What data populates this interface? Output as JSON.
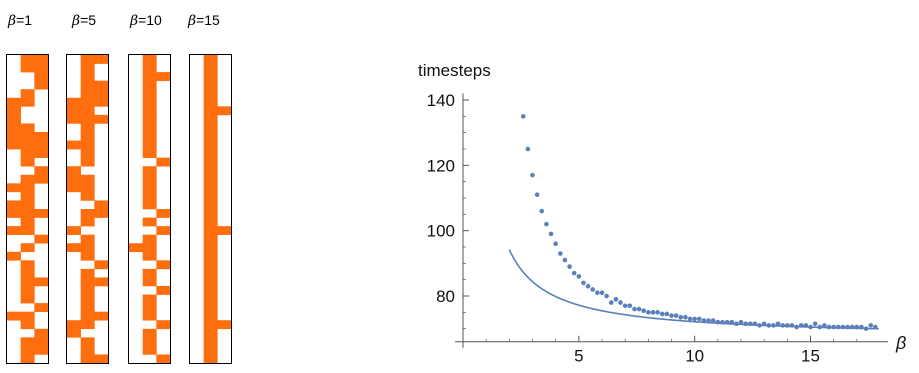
{
  "panels": [
    {
      "symbol": "β",
      "value_label": "=1",
      "cells": [
        [
          1,
          2
        ],
        [
          1,
          2
        ],
        [
          2
        ],
        [
          2
        ],
        [
          1
        ],
        [
          0,
          1
        ],
        [
          0
        ],
        [
          0
        ],
        [
          0,
          1
        ],
        [
          0,
          1,
          2
        ],
        [
          0,
          1,
          2
        ],
        [
          1,
          2
        ],
        [
          1
        ],
        [
          2
        ],
        [
          1,
          2
        ],
        [
          0,
          1
        ],
        [
          1
        ],
        [
          0,
          1
        ],
        [
          0,
          1,
          2
        ],
        [
          1
        ],
        [
          0,
          1
        ],
        [
          2
        ],
        [
          1
        ],
        [
          0
        ],
        [
          1
        ],
        [
          1
        ],
        [
          1,
          2
        ],
        [
          1
        ],
        [
          1
        ],
        [
          2
        ],
        [
          0,
          1
        ],
        [
          1
        ],
        [
          2
        ],
        [
          1,
          2
        ],
        [
          1,
          2
        ],
        [
          1
        ]
      ]
    },
    {
      "symbol": "β",
      "value_label": "=5",
      "cells": [
        [
          1,
          2
        ],
        [
          1
        ],
        [
          1
        ],
        [
          1,
          2
        ],
        [
          1,
          2
        ],
        [
          0,
          1,
          2
        ],
        [
          0,
          1
        ],
        [
          0,
          1,
          2
        ],
        [
          1
        ],
        [
          1
        ],
        [
          0,
          1
        ],
        [
          1
        ],
        [
          1
        ],
        [
          0
        ],
        [
          0,
          1
        ],
        [
          0,
          1
        ],
        [
          1
        ],
        [
          2
        ],
        [
          1,
          2
        ],
        [
          1
        ],
        [
          0
        ],
        [
          1
        ],
        [
          0,
          1
        ],
        [
          1
        ],
        [
          2
        ],
        [
          1
        ],
        [
          1,
          2
        ],
        [
          1
        ],
        [
          1
        ],
        [
          1
        ],
        [
          1,
          2
        ],
        [
          0,
          1
        ],
        [
          0
        ],
        [
          1
        ],
        [
          1
        ],
        [
          1,
          2
        ]
      ]
    },
    {
      "symbol": "β",
      "value_label": "=10",
      "cells": [
        [
          1
        ],
        [
          1
        ],
        [
          1,
          2
        ],
        [
          1
        ],
        [
          1
        ],
        [
          1
        ],
        [
          1
        ],
        [
          1
        ],
        [
          1
        ],
        [
          1
        ],
        [
          1
        ],
        [
          1
        ],
        [
          2
        ],
        [
          1
        ],
        [
          1
        ],
        [
          1
        ],
        [
          1
        ],
        [
          1
        ],
        [
          2
        ],
        [
          1
        ],
        [
          2
        ],
        [
          1
        ],
        [
          0,
          1
        ],
        [
          1
        ],
        [
          2
        ],
        [
          1
        ],
        [
          1
        ],
        [
          2
        ],
        [
          1
        ],
        [
          1
        ],
        [
          1
        ],
        [
          2
        ],
        [
          1
        ],
        [
          1
        ],
        [
          1
        ],
        [
          2
        ]
      ]
    },
    {
      "symbol": "β",
      "value_label": "=15",
      "cells": [
        [
          1
        ],
        [
          1
        ],
        [
          1
        ],
        [
          1
        ],
        [
          1
        ],
        [
          1
        ],
        [
          1,
          2
        ],
        [
          1
        ],
        [
          1
        ],
        [
          1
        ],
        [
          1
        ],
        [
          1
        ],
        [
          1
        ],
        [
          1
        ],
        [
          1
        ],
        [
          1
        ],
        [
          1
        ],
        [
          1
        ],
        [
          1
        ],
        [
          1
        ],
        [
          1,
          2
        ],
        [
          1
        ],
        [
          1
        ],
        [
          1
        ],
        [
          1
        ],
        [
          1
        ],
        [
          1
        ],
        [
          1
        ],
        [
          1
        ],
        [
          1
        ],
        [
          1
        ],
        [
          1,
          2
        ],
        [
          1
        ],
        [
          1
        ],
        [
          1
        ],
        [
          1
        ]
      ]
    }
  ],
  "grid_colors": {
    "filled": "#ff6e0e",
    "border": "#000000",
    "background": "#ffffff"
  },
  "chart_data": {
    "type": "scatter",
    "title": "",
    "xlabel": "β",
    "ylabel": "timesteps",
    "xlim": [
      0,
      18
    ],
    "ylim": [
      66,
      142
    ],
    "x_ticks": [
      5,
      10,
      15
    ],
    "y_ticks": [
      80,
      100,
      120,
      140
    ],
    "color": "#5b7fb8",
    "series": [
      {
        "x": [
          2.6,
          2.8,
          3.0,
          3.2,
          3.4,
          3.6,
          3.8,
          4.0,
          4.2,
          4.4,
          4.6,
          4.8,
          5.0,
          5.2,
          5.4,
          5.6,
          5.8,
          6.0,
          6.2,
          6.4,
          6.6,
          6.8,
          7.0,
          7.2,
          7.4,
          7.6,
          7.8,
          8.0,
          8.2,
          8.4,
          8.6,
          8.8,
          9.0,
          9.2,
          9.4,
          9.6,
          9.8,
          10.0,
          10.2,
          10.4,
          10.6,
          10.8,
          11.0,
          11.2,
          11.4,
          11.6,
          11.8,
          12.0,
          12.2,
          12.4,
          12.6,
          12.8,
          13.0,
          13.2,
          13.4,
          13.6,
          13.8,
          14.0,
          14.2,
          14.4,
          14.6,
          14.8,
          15.0,
          15.2,
          15.4,
          15.6,
          15.8,
          16.0,
          16.2,
          16.4,
          16.6,
          16.8,
          17.0,
          17.2,
          17.4,
          17.6,
          17.8
        ],
        "y": [
          135,
          125,
          117,
          111,
          106,
          102,
          99,
          96,
          93,
          91,
          89,
          87,
          86,
          84,
          83,
          82,
          81,
          81,
          80,
          78,
          79,
          78,
          77,
          77,
          76,
          76,
          75.5,
          75,
          75,
          75,
          74.5,
          74.5,
          74,
          74,
          73.5,
          73.5,
          73,
          73,
          73,
          72.5,
          72.5,
          72.5,
          72,
          72,
          72,
          72,
          71.5,
          72,
          71.5,
          71.5,
          71.5,
          71,
          71.5,
          71,
          71,
          71.5,
          71,
          71,
          71,
          70.5,
          71,
          71,
          70.5,
          71.5,
          70.5,
          71,
          70.5,
          70.5,
          70.5,
          70.5,
          70.5,
          70.5,
          70.5,
          70.5,
          70,
          71,
          70.5
        ]
      }
    ],
    "fit": {
      "a": 47,
      "b": 0.25,
      "c": 67.3
    }
  }
}
